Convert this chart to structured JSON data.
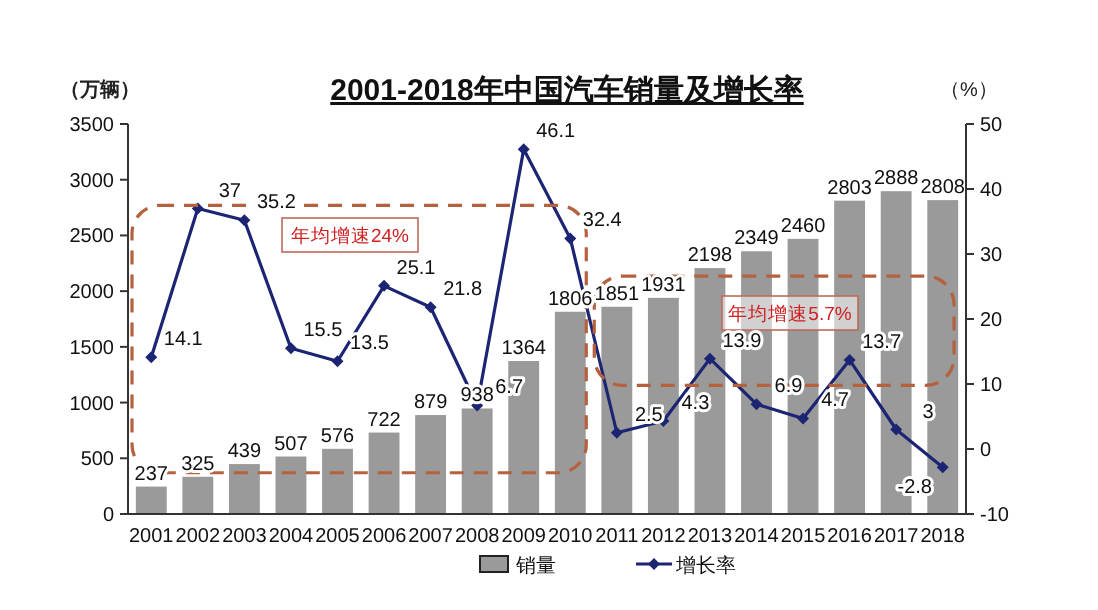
{
  "chart_data": {
    "type": "bar",
    "title": "2001-2018年中国汽车销量及增长率",
    "ylabel": "（万辆）",
    "y2label": "（%）",
    "categories": [
      "2001",
      "2002",
      "2003",
      "2004",
      "2005",
      "2006",
      "2007",
      "2008",
      "2009",
      "2010",
      "2011",
      "2012",
      "2013",
      "2014",
      "2015",
      "2016",
      "2017",
      "2018"
    ],
    "series": [
      {
        "name": "销量",
        "color": "#9a9a9a",
        "values": [
          237,
          325,
          439,
          507,
          576,
          722,
          879,
          938,
          1364,
          1806,
          1851,
          1931,
          2198,
          2349,
          2460,
          2803,
          2888,
          2808
        ]
      },
      {
        "name": "增长率",
        "type": "line",
        "axis": "y2",
        "color": "#1c2573",
        "marker": "diamond",
        "values": [
          14.1,
          37,
          35.2,
          15.5,
          13.5,
          25.1,
          21.8,
          6.7,
          46.1,
          32.4,
          2.5,
          4.3,
          13.9,
          6.9,
          4.7,
          13.7,
          3,
          -2.8
        ]
      }
    ],
    "ylim": [
      0,
      3500
    ],
    "yticks": [
      0,
      500,
      1000,
      1500,
      2000,
      2500,
      3000,
      3500
    ],
    "y2lim": [
      -10,
      50
    ],
    "y2ticks": [
      -10,
      0,
      10,
      20,
      30,
      40,
      50
    ],
    "data_labels": true,
    "legend": "bottom",
    "annotations": [
      "年均增速24%",
      "年均增速5.7%"
    ]
  }
}
